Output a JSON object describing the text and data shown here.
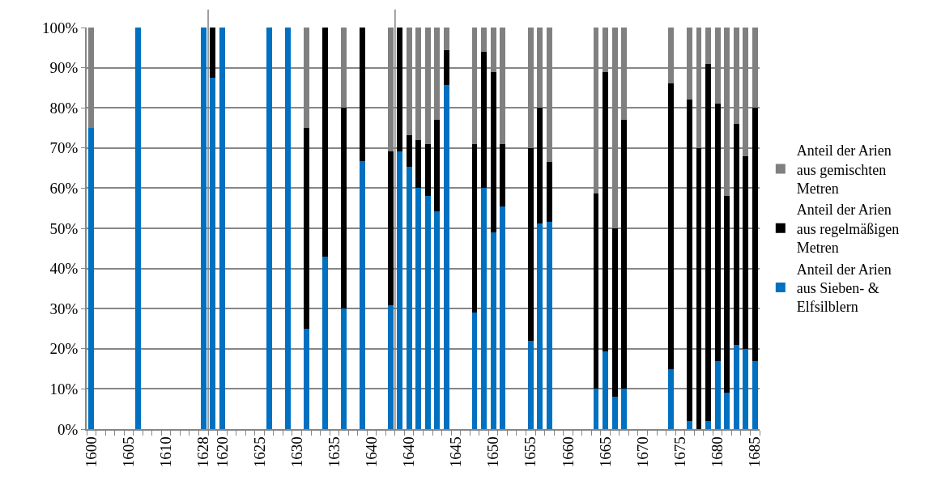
{
  "chart_data": {
    "type": "bar",
    "stacked": true,
    "categories": [
      "1600",
      null,
      null,
      null,
      "1605",
      null,
      null,
      null,
      "1610",
      null,
      null,
      null,
      "1628",
      null,
      "1620",
      null,
      null,
      null,
      "1625",
      null,
      null,
      null,
      "1630",
      null,
      null,
      null,
      "1635",
      null,
      null,
      null,
      "1640",
      null,
      null,
      null,
      "1640",
      null,
      null,
      null,
      null,
      "1645",
      null,
      null,
      null,
      "1650",
      null,
      null,
      null,
      "1655",
      null,
      null,
      null,
      "1660",
      null,
      null,
      null,
      "1665",
      null,
      null,
      null,
      "1670",
      null,
      null,
      null,
      "1675",
      null,
      null,
      null,
      "1680",
      null,
      null,
      null,
      "1685"
    ],
    "series": [
      {
        "name": "Anteil der Arien aus Sieben- & Elfsilblern",
        "color": "#0070c0",
        "values": [
          75,
          null,
          null,
          null,
          null,
          100,
          null,
          null,
          null,
          null,
          null,
          null,
          100,
          87.5,
          100,
          null,
          null,
          null,
          null,
          100,
          null,
          100,
          null,
          25,
          null,
          43,
          null,
          30,
          null,
          66.7,
          null,
          null,
          30.8,
          69.2,
          65.4,
          60,
          58.1,
          54.2,
          85.7,
          null,
          null,
          29,
          60,
          48.9,
          55.5,
          null,
          null,
          22,
          51.2,
          51.7,
          null,
          null,
          null,
          null,
          10.1,
          19.4,
          8,
          10,
          null,
          null,
          null,
          null,
          15,
          null,
          2,
          0,
          2,
          17,
          9,
          21,
          20,
          17
        ]
      },
      {
        "name": "Anteil der Arien aus regelmäßigen Metren",
        "color": "#000000",
        "values": [
          0,
          null,
          null,
          null,
          null,
          0,
          null,
          null,
          null,
          null,
          null,
          null,
          0,
          12.5,
          0,
          null,
          null,
          null,
          null,
          0,
          null,
          0,
          null,
          50,
          null,
          57,
          null,
          50,
          null,
          33.3,
          null,
          null,
          38.4,
          30.8,
          7.7,
          12,
          12.8,
          22.9,
          8.6,
          null,
          null,
          42,
          34,
          40,
          15.5,
          null,
          null,
          48,
          28.8,
          14.8,
          null,
          null,
          null,
          null,
          48.6,
          69.5,
          42,
          67,
          null,
          null,
          null,
          null,
          71,
          null,
          80,
          70,
          89,
          64,
          49,
          55,
          48,
          63
        ]
      },
      {
        "name": "Anteil der Arien aus gemischten Metren",
        "color": "#808080",
        "values": [
          25,
          null,
          null,
          null,
          null,
          0,
          null,
          null,
          null,
          null,
          null,
          null,
          0,
          0,
          0,
          null,
          null,
          null,
          null,
          0,
          null,
          0,
          null,
          25,
          null,
          0,
          null,
          20,
          null,
          0,
          null,
          null,
          30.8,
          0,
          26.9,
          28,
          29.1,
          22.9,
          5.7,
          null,
          null,
          29,
          6,
          11.1,
          29,
          null,
          null,
          30,
          20,
          33.5,
          null,
          null,
          null,
          null,
          41.3,
          11.1,
          50,
          23,
          null,
          null,
          null,
          null,
          14,
          null,
          18,
          30,
          9,
          19,
          42,
          24,
          32,
          20
        ]
      }
    ],
    "ylim": [
      0,
      100
    ],
    "yticks": [
      {
        "value": 0,
        "label": "0%"
      },
      {
        "value": 10,
        "label": "10%"
      },
      {
        "value": 20,
        "label": "20%"
      },
      {
        "value": 30,
        "label": "30%"
      },
      {
        "value": 40,
        "label": "40%"
      },
      {
        "value": 50,
        "label": "50%"
      },
      {
        "value": 60,
        "label": "60%"
      },
      {
        "value": 70,
        "label": "70%"
      },
      {
        "value": 80,
        "label": "80%"
      },
      {
        "value": 90,
        "label": "90%"
      },
      {
        "value": 100,
        "label": "100%"
      }
    ],
    "grid": "y",
    "legend": "right"
  }
}
